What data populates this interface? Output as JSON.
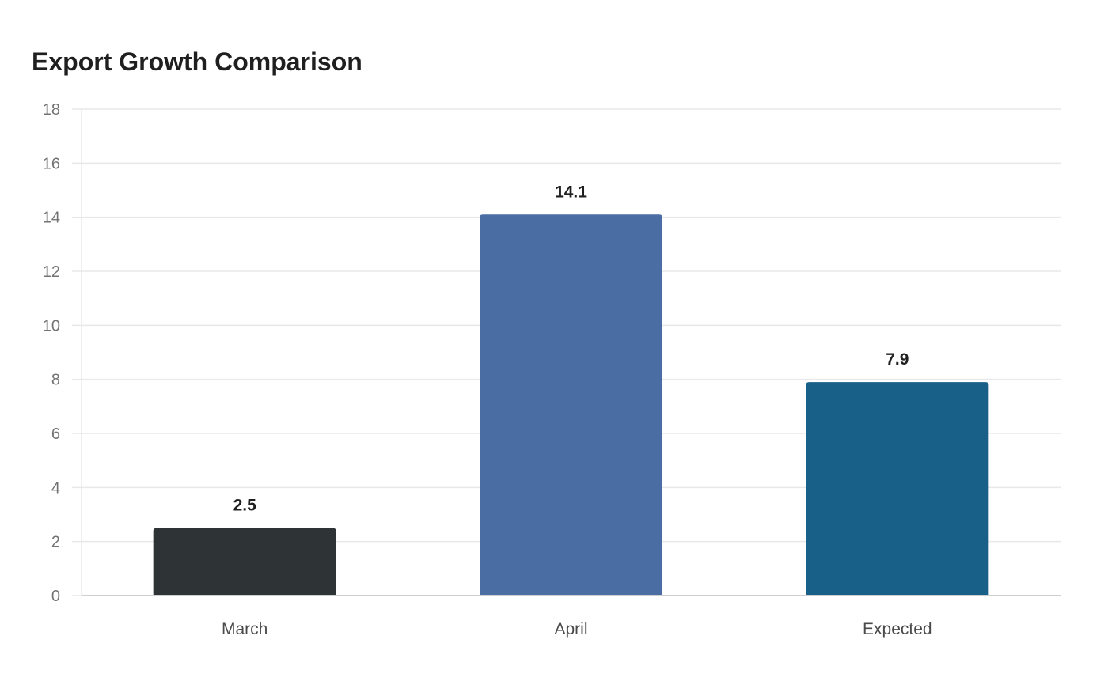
{
  "chart_data": {
    "type": "bar",
    "title": "Export Growth Comparison",
    "categories": [
      "March",
      "April",
      "Expected"
    ],
    "values": [
      2.5,
      14.1,
      7.9
    ],
    "value_labels": [
      "2.5",
      "14.1",
      "7.9"
    ],
    "colors": [
      "#2e3436",
      "#4a6ea3",
      "#186087"
    ],
    "xlabel": "",
    "ylabel": "",
    "ylim": [
      0,
      18
    ],
    "yticks": [
      0,
      2,
      4,
      6,
      8,
      10,
      12,
      14,
      16,
      18
    ],
    "grid": true,
    "legend": "none"
  },
  "colors": {
    "grid": "#e8e8e8",
    "axis": "#cfcfcf"
  }
}
